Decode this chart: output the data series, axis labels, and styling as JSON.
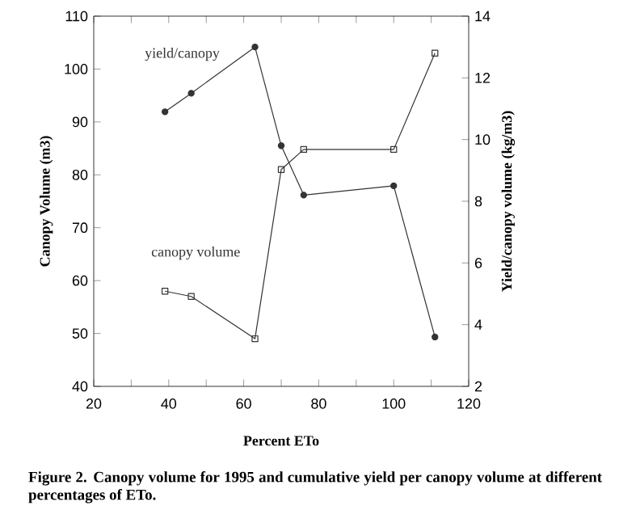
{
  "chart_data": {
    "type": "line",
    "xlabel": "Percent ETo",
    "ylabel": "Canopy Volume (m3)",
    "y2label": "Yield/canopy volume (kg/m3)",
    "annotations": [
      "Figure 2.  Canopy volume for 1995 and cumulative yield per canopy volume at different percentages of ETo."
    ],
    "x": [
      39,
      46,
      63,
      70,
      76,
      100,
      111
    ],
    "series": [
      {
        "name": "yield/canopy",
        "color": "#333333",
        "marker": "circle",
        "axis": "y2",
        "values": [
          10.9,
          11.5,
          13.0,
          9.8,
          8.2,
          8.5,
          3.6
        ]
      },
      {
        "name": "canopy volume",
        "color": "#333333",
        "marker": "square",
        "values": [
          58,
          57,
          49,
          81,
          84.8,
          84.8,
          103
        ]
      }
    ],
    "xlim": [
      20,
      120
    ],
    "xticks": [
      20,
      {
        "value": 30,
        "label": null
      },
      40,
      {
        "value": 50,
        "label": null
      },
      60,
      {
        "value": 70,
        "label": null
      },
      80,
      {
        "value": 90,
        "label": null
      },
      100,
      {
        "value": 110,
        "label": null
      },
      120
    ],
    "ylim": [
      40,
      110
    ],
    "yticks": [
      40,
      50,
      60,
      70,
      80,
      90,
      100,
      110
    ],
    "y2lim": [
      2,
      14
    ],
    "y2ticks": [
      2,
      4,
      6,
      8,
      10,
      12,
      14
    ],
    "tick_labels": true
  }
}
